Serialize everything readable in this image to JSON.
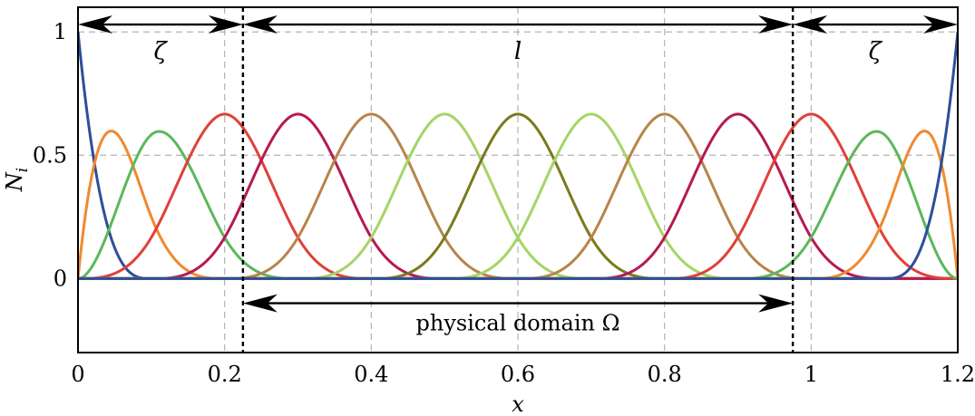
{
  "chart_data": {
    "type": "line",
    "title": "",
    "xlabel": "x",
    "ylabel": "N",
    "ylabel_subscript": "i",
    "xlim": [
      0,
      1.2
    ],
    "ylim": [
      -0.3,
      1.1
    ],
    "x_ticks": [
      0,
      0.2,
      0.4,
      0.6,
      0.8,
      1,
      1.2
    ],
    "x_tick_labels": [
      "0",
      "0.2",
      "0.4",
      "0.6",
      "0.8",
      "1",
      "1.2"
    ],
    "y_ticks": [
      0,
      0.5,
      1
    ],
    "y_tick_labels": [
      "0",
      "0.5",
      "1"
    ],
    "grid": true,
    "grid_x_extra": [
      1.0
    ],
    "grid_y_extra": [
      0.5,
      1.0
    ],
    "dashed_lines_x": [
      0.225,
      0.975
    ],
    "annotations": {
      "zeta_left": {
        "text": "ζ",
        "x": 0.112,
        "y": 0.92,
        "from": 0,
        "to": 0.225,
        "arrow_y": 1.03
      },
      "l": {
        "text": "l",
        "x": 0.6,
        "y": 0.92,
        "from": 0.225,
        "to": 0.975,
        "arrow_y": 1.03
      },
      "zeta_right": {
        "text": "ζ",
        "x": 1.087,
        "y": 0.92,
        "from": 0.975,
        "to": 1.2,
        "arrow_y": 1.03
      },
      "domain": {
        "text": "physical domain Ω",
        "x": 0.6,
        "y": -0.18,
        "from": 0.225,
        "to": 0.975,
        "arrow_y": -0.1
      }
    },
    "basis": {
      "degree": 3,
      "knots": [
        0,
        0,
        0,
        0,
        0.1,
        0.2,
        0.3,
        0.4,
        0.5,
        0.6,
        0.7,
        0.8,
        0.9,
        1.0,
        1.1,
        1.2,
        1.2,
        1.2,
        1.2
      ]
    },
    "series_colors": [
      "#2b4f9a",
      "#f0892f",
      "#5bb85a",
      "#e0403a",
      "#b51a55",
      "#b8844a",
      "#a6d466",
      "#7a7a1e",
      "#a6d466",
      "#b8844a",
      "#b51a55",
      "#e0403a",
      "#5bb85a",
      "#f0892f",
      "#2b4f9a"
    ],
    "grid_color": "#b3b3b3"
  }
}
